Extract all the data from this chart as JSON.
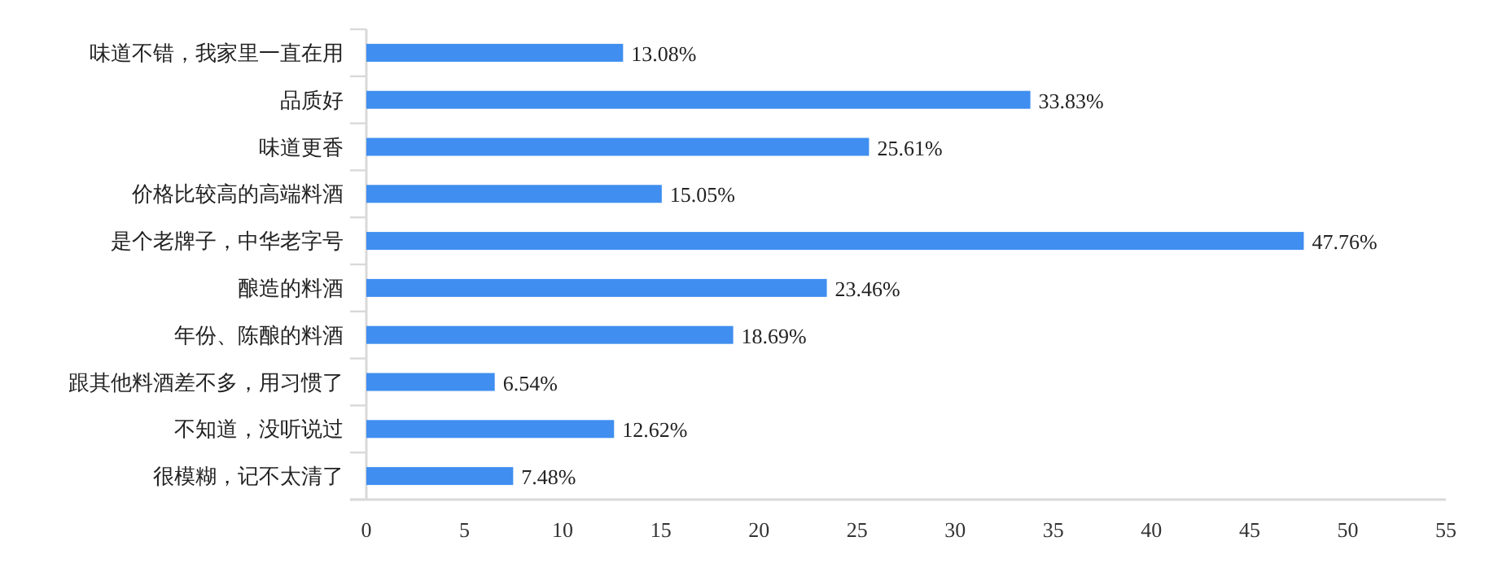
{
  "chart_data": {
    "type": "bar",
    "orientation": "horizontal",
    "categories": [
      "味道不错，我家里一直在用",
      "品质好",
      "味道更香",
      "价格比较高的高端料酒",
      "是个老牌子，中华老字号",
      "酿造的料酒",
      "年份、陈酿的料酒",
      "跟其他料酒差不多，用习惯了",
      "不知道，没听说过",
      "很模糊，记不太清了"
    ],
    "values": [
      13.08,
      33.83,
      25.61,
      15.05,
      47.76,
      23.46,
      18.69,
      6.54,
      12.62,
      7.48
    ],
    "value_labels": [
      "13.08%",
      "33.83%",
      "25.61%",
      "15.05%",
      "47.76%",
      "23.46%",
      "18.69%",
      "6.54%",
      "12.62%",
      "7.48%"
    ],
    "color": "#3f8ef0",
    "xlim": [
      0,
      55
    ],
    "xticks": [
      0,
      5,
      10,
      15,
      20,
      25,
      30,
      35,
      40,
      45,
      50,
      55
    ],
    "grid": false
  }
}
